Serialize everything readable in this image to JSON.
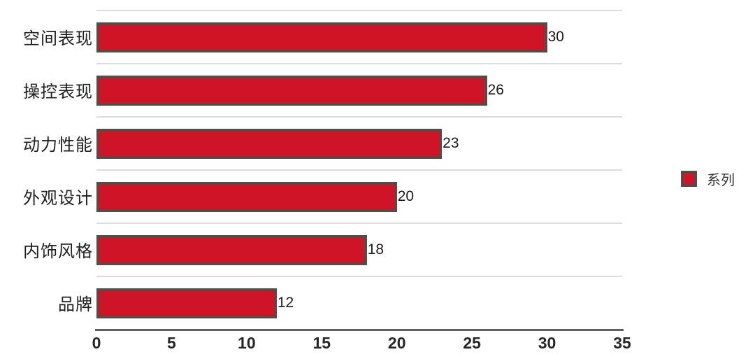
{
  "chart_data": {
    "type": "bar",
    "orientation": "horizontal",
    "categories": [
      "空间表现",
      "操控表现",
      "动力性能",
      "外观设计",
      "内饰风格",
      "品牌"
    ],
    "values": [
      30,
      26,
      23,
      20,
      18,
      12
    ],
    "xticks": [
      0,
      5,
      10,
      15,
      20,
      25,
      30,
      35
    ],
    "xlim": [
      0,
      35
    ],
    "title": "",
    "xlabel": "",
    "ylabel": "",
    "grid": "category-separator-lines",
    "bar_value_labels_shown": true,
    "legend": {
      "label": "系列",
      "position": "right"
    }
  },
  "colors": {
    "bar_fill": "#CE1426",
    "bar_border": "#4D5046",
    "gridline": "#DDDDDD",
    "axis_line": "#5E6163",
    "text": "#1F1F1F",
    "background": "#FFFFFF"
  }
}
